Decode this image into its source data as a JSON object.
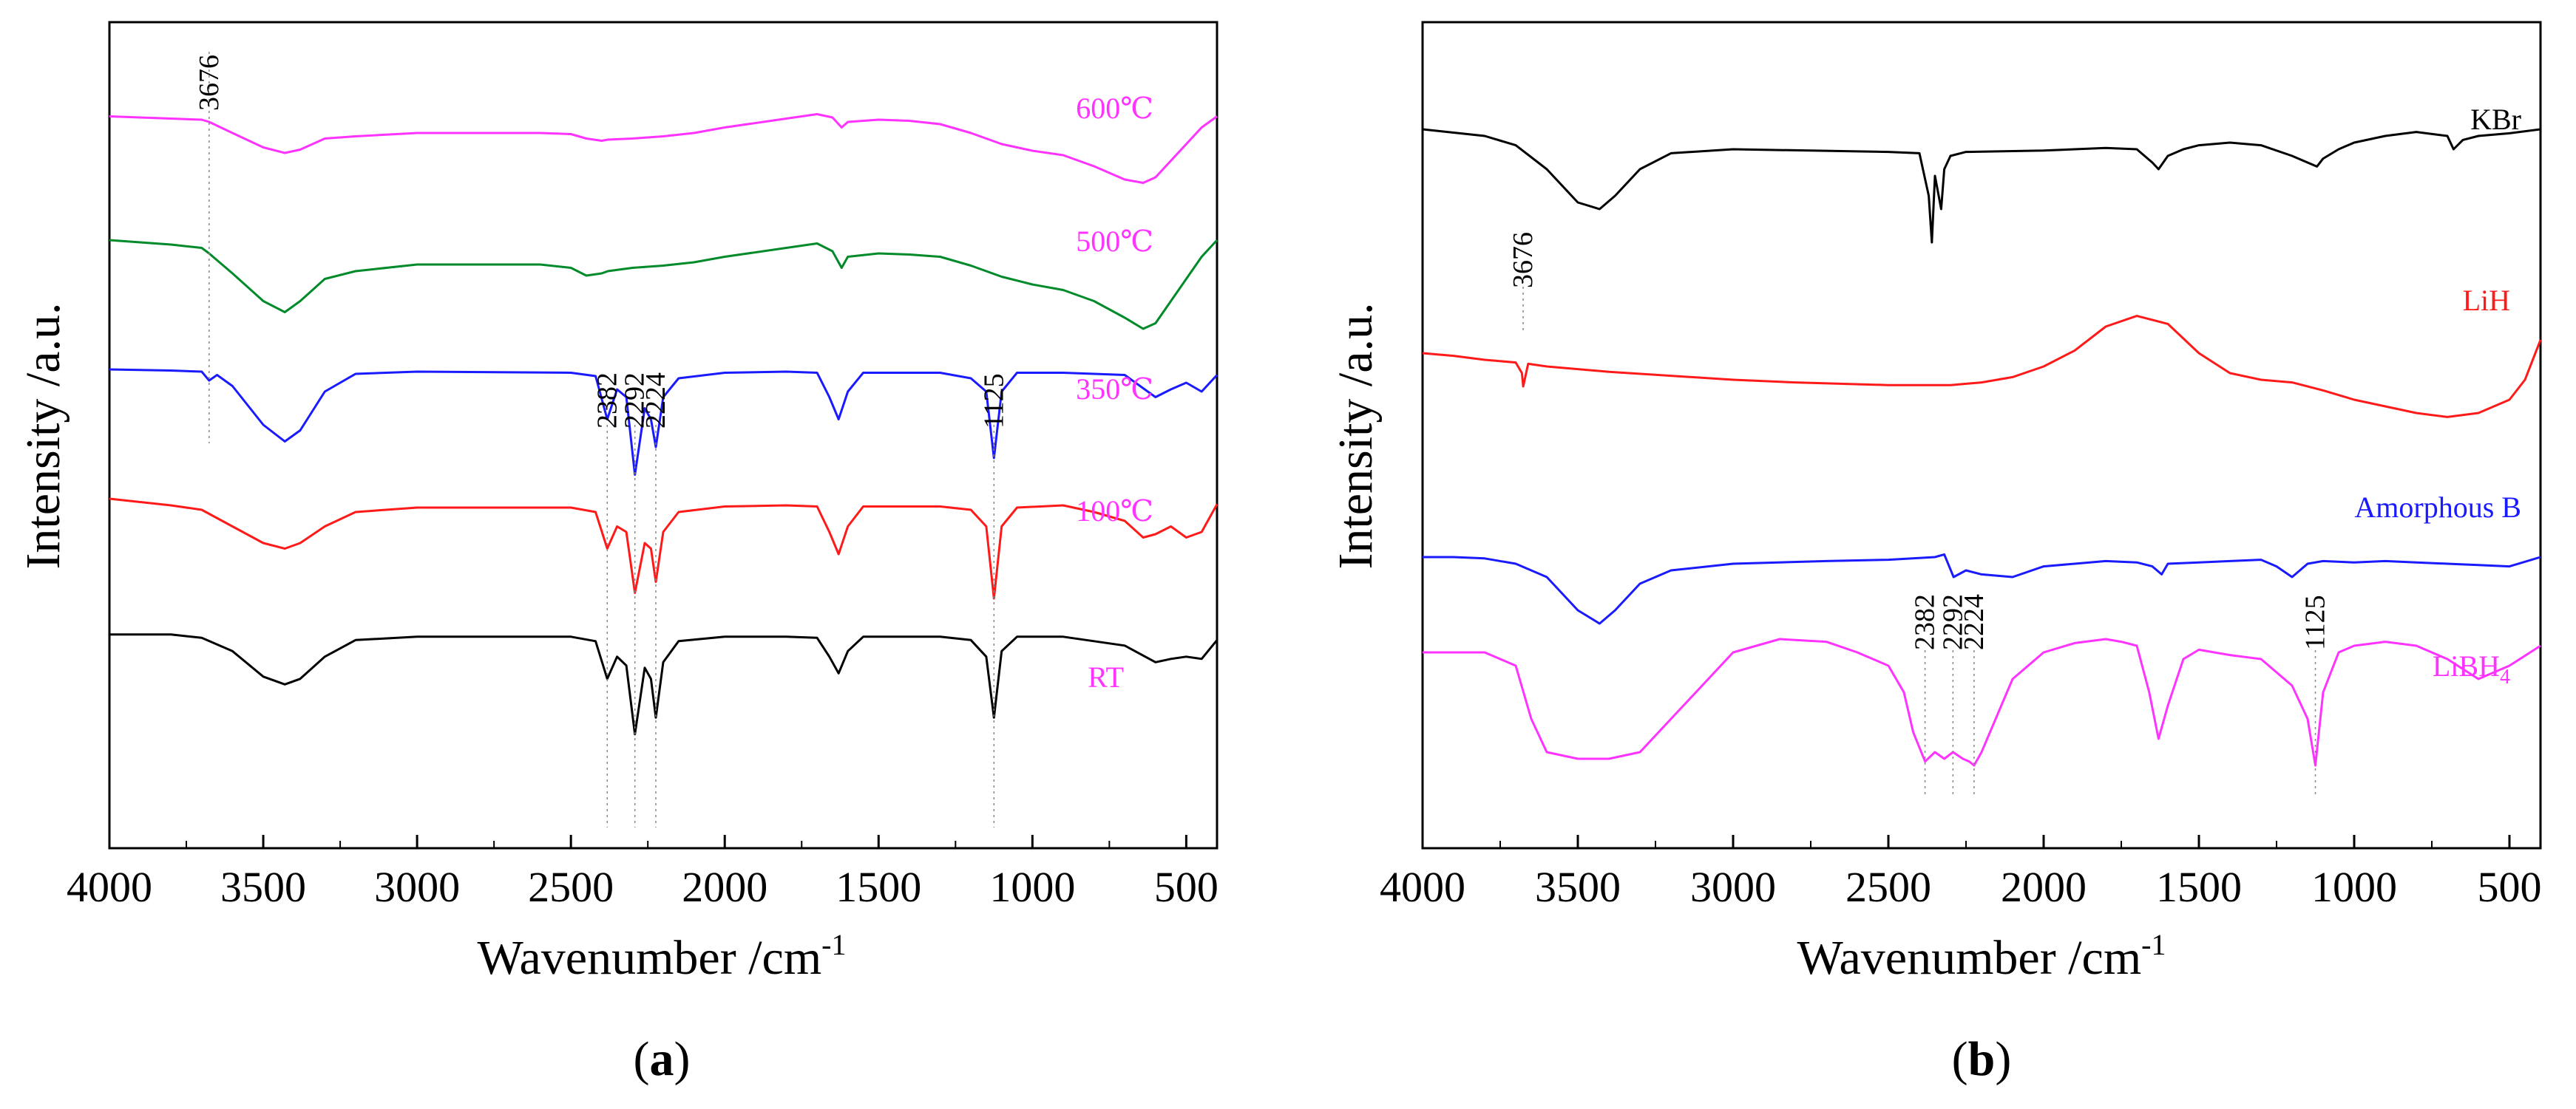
{
  "chart_data": [
    {
      "type": "line",
      "panel_label": "a",
      "xlabel": "Wavenumber /cm",
      "xlabel_sup": "-1",
      "ylabel": "Intensity /a.u.",
      "xlim": [
        4000,
        400
      ],
      "xticks": [
        4000,
        3500,
        3000,
        2500,
        2000,
        1500,
        1000,
        500
      ],
      "peak_markers": [
        {
          "label": "3676",
          "x": 3676
        },
        {
          "label": "2382",
          "x": 2382
        },
        {
          "label": "2292",
          "x": 2292
        },
        {
          "label": "2224",
          "x": 2224
        },
        {
          "label": "1125",
          "x": 1125
        }
      ],
      "series": [
        {
          "name": "600℃",
          "color": "#ff33ff",
          "offset": 0.0,
          "x": [
            4000,
            3900,
            3800,
            3700,
            3676,
            3600,
            3500,
            3430,
            3380,
            3300,
            3200,
            3000,
            2600,
            2500,
            2450,
            2400,
            2380,
            2300,
            2250,
            2200,
            2100,
            2000,
            1800,
            1700,
            1650,
            1620,
            1600,
            1500,
            1400,
            1300,
            1200,
            1100,
            1000,
            900,
            800,
            700,
            640,
            600,
            550,
            500,
            450,
            400
          ],
          "y": [
            0.05,
            0.06,
            0.07,
            0.08,
            0.1,
            0.2,
            0.33,
            0.38,
            0.35,
            0.25,
            0.23,
            0.2,
            0.2,
            0.21,
            0.25,
            0.27,
            0.26,
            0.25,
            0.24,
            0.23,
            0.2,
            0.15,
            0.07,
            0.03,
            0.06,
            0.15,
            0.1,
            0.08,
            0.09,
            0.12,
            0.2,
            0.3,
            0.36,
            0.4,
            0.5,
            0.62,
            0.65,
            0.6,
            0.45,
            0.3,
            0.15,
            0.05
          ]
        },
        {
          "name": "500℃",
          "color": "#008a2a",
          "offset": 1.0,
          "x": [
            4000,
            3900,
            3800,
            3700,
            3676,
            3600,
            3500,
            3430,
            3380,
            3300,
            3200,
            3000,
            2600,
            2500,
            2450,
            2400,
            2380,
            2300,
            2250,
            2200,
            2100,
            2000,
            1800,
            1700,
            1650,
            1620,
            1600,
            1500,
            1400,
            1300,
            1200,
            1100,
            1000,
            900,
            800,
            700,
            640,
            600,
            550,
            500,
            450,
            400
          ],
          "y": [
            0.0,
            0.02,
            0.04,
            0.07,
            0.12,
            0.3,
            0.55,
            0.65,
            0.55,
            0.35,
            0.28,
            0.22,
            0.22,
            0.25,
            0.32,
            0.3,
            0.28,
            0.25,
            0.24,
            0.23,
            0.2,
            0.15,
            0.07,
            0.03,
            0.1,
            0.25,
            0.15,
            0.12,
            0.13,
            0.15,
            0.23,
            0.33,
            0.4,
            0.45,
            0.55,
            0.7,
            0.8,
            0.75,
            0.55,
            0.35,
            0.15,
            0.0
          ]
        },
        {
          "name": "350℃",
          "color": "#1a1aff",
          "offset": 2.0,
          "x": [
            4000,
            3800,
            3700,
            3676,
            3650,
            3600,
            3500,
            3430,
            3380,
            3300,
            3200,
            3000,
            2500,
            2420,
            2382,
            2350,
            2320,
            2292,
            2260,
            2240,
            2224,
            2200,
            2150,
            2000,
            1800,
            1700,
            1660,
            1630,
            1600,
            1550,
            1300,
            1200,
            1150,
            1125,
            1100,
            1050,
            900,
            700,
            600,
            550,
            500,
            450,
            400
          ],
          "y": [
            0.0,
            0.01,
            0.02,
            0.1,
            0.05,
            0.15,
            0.5,
            0.65,
            0.55,
            0.2,
            0.04,
            0.02,
            0.03,
            0.06,
            0.45,
            0.18,
            0.25,
            0.95,
            0.35,
            0.45,
            0.7,
            0.25,
            0.08,
            0.03,
            0.02,
            0.03,
            0.25,
            0.45,
            0.2,
            0.03,
            0.03,
            0.08,
            0.2,
            0.8,
            0.2,
            0.03,
            0.03,
            0.05,
            0.25,
            0.18,
            0.12,
            0.2,
            0.05
          ]
        },
        {
          "name": "100℃",
          "color": "#ff1a1a",
          "offset": 3.0,
          "x": [
            4000,
            3900,
            3800,
            3700,
            3600,
            3500,
            3430,
            3380,
            3300,
            3200,
            3000,
            2500,
            2420,
            2382,
            2350,
            2320,
            2292,
            2260,
            2240,
            2224,
            2200,
            2150,
            2000,
            1800,
            1700,
            1660,
            1630,
            1600,
            1550,
            1300,
            1200,
            1150,
            1125,
            1100,
            1050,
            900,
            800,
            700,
            640,
            600,
            550,
            500,
            450,
            400
          ],
          "y": [
            0.0,
            0.03,
            0.06,
            0.1,
            0.25,
            0.4,
            0.45,
            0.4,
            0.25,
            0.12,
            0.08,
            0.08,
            0.12,
            0.45,
            0.25,
            0.3,
            0.85,
            0.4,
            0.45,
            0.75,
            0.3,
            0.12,
            0.07,
            0.06,
            0.07,
            0.3,
            0.5,
            0.25,
            0.07,
            0.07,
            0.1,
            0.25,
            0.9,
            0.25,
            0.08,
            0.06,
            0.12,
            0.2,
            0.35,
            0.32,
            0.25,
            0.35,
            0.3,
            0.05
          ]
        },
        {
          "name": "RT",
          "color": "#000000",
          "offset": 4.05,
          "x": [
            4000,
            3800,
            3700,
            3600,
            3500,
            3430,
            3380,
            3300,
            3200,
            3000,
            2500,
            2420,
            2382,
            2350,
            2320,
            2292,
            2260,
            2240,
            2224,
            2200,
            2150,
            2000,
            1800,
            1700,
            1660,
            1630,
            1600,
            1550,
            1300,
            1200,
            1150,
            1125,
            1100,
            1050,
            900,
            700,
            600,
            550,
            500,
            450,
            400
          ],
          "y": [
            0.0,
            0.0,
            0.03,
            0.15,
            0.38,
            0.45,
            0.4,
            0.2,
            0.05,
            0.02,
            0.02,
            0.06,
            0.4,
            0.2,
            0.28,
            0.9,
            0.3,
            0.4,
            0.75,
            0.25,
            0.06,
            0.02,
            0.02,
            0.03,
            0.2,
            0.35,
            0.15,
            0.02,
            0.02,
            0.05,
            0.2,
            0.75,
            0.15,
            0.02,
            0.02,
            0.1,
            0.25,
            0.22,
            0.2,
            0.22,
            0.05
          ]
        }
      ]
    },
    {
      "type": "line",
      "panel_label": "b",
      "xlabel": "Wavenumber /cm",
      "xlabel_sup": "-1",
      "ylabel": "Intensity /a.u.",
      "xlim": [
        4000,
        400
      ],
      "xticks": [
        4000,
        3500,
        3000,
        2500,
        2000,
        1500,
        1000,
        500
      ],
      "peak_markers": [
        {
          "label": "3676",
          "x": 3676
        },
        {
          "label": "2382",
          "x": 2382
        },
        {
          "label": "2292",
          "x": 2292
        },
        {
          "label": "2224",
          "x": 2224
        },
        {
          "label": "1125",
          "x": 1125
        }
      ],
      "series": [
        {
          "name": "KBr",
          "color": "#000000",
          "offset": 0.0,
          "x": [
            4000,
            3800,
            3700,
            3600,
            3500,
            3430,
            3380,
            3300,
            3200,
            3000,
            2500,
            2400,
            2370,
            2360,
            2350,
            2330,
            2320,
            2300,
            2250,
            2000,
            1800,
            1700,
            1650,
            1630,
            1600,
            1550,
            1500,
            1400,
            1300,
            1200,
            1150,
            1120,
            1100,
            1050,
            1000,
            900,
            800,
            700,
            680,
            650,
            600,
            500,
            400
          ],
          "y": [
            0.0,
            0.05,
            0.12,
            0.3,
            0.55,
            0.6,
            0.5,
            0.3,
            0.18,
            0.15,
            0.17,
            0.18,
            0.5,
            0.85,
            0.35,
            0.6,
            0.3,
            0.2,
            0.17,
            0.16,
            0.14,
            0.15,
            0.25,
            0.3,
            0.2,
            0.15,
            0.12,
            0.1,
            0.12,
            0.2,
            0.25,
            0.28,
            0.22,
            0.15,
            0.1,
            0.05,
            0.02,
            0.05,
            0.15,
            0.08,
            0.05,
            0.03,
            0.0
          ]
        },
        {
          "name": "LiH",
          "color": "#ff1a1a",
          "offset": 0.95,
          "x": [
            4000,
            3900,
            3800,
            3700,
            3680,
            3676,
            3660,
            3600,
            3500,
            3400,
            3000,
            2800,
            2500,
            2300,
            2200,
            2100,
            2000,
            1900,
            1800,
            1700,
            1600,
            1500,
            1400,
            1300,
            1200,
            1100,
            1000,
            900,
            800,
            700,
            600,
            500,
            450,
            400
          ],
          "y": [
            0.1,
            0.12,
            0.15,
            0.17,
            0.25,
            0.35,
            0.18,
            0.2,
            0.22,
            0.24,
            0.3,
            0.32,
            0.34,
            0.34,
            0.32,
            0.28,
            0.2,
            0.08,
            -0.1,
            -0.18,
            -0.12,
            0.1,
            0.25,
            0.3,
            0.32,
            0.38,
            0.45,
            0.5,
            0.55,
            0.58,
            0.55,
            0.45,
            0.3,
            0.0
          ]
        },
        {
          "name": "Amorphous B",
          "color": "#1a1aff",
          "offset": 1.9,
          "x": [
            4000,
            3900,
            3800,
            3700,
            3600,
            3500,
            3430,
            3380,
            3300,
            3200,
            3000,
            2700,
            2500,
            2350,
            2320,
            2290,
            2250,
            2200,
            2100,
            2000,
            1900,
            1800,
            1700,
            1650,
            1620,
            1600,
            1500,
            1400,
            1300,
            1250,
            1200,
            1150,
            1100,
            1000,
            900,
            800,
            700,
            600,
            500,
            400
          ],
          "y": [
            0.05,
            0.05,
            0.06,
            0.1,
            0.2,
            0.45,
            0.55,
            0.45,
            0.25,
            0.15,
            0.1,
            0.08,
            0.07,
            0.05,
            0.03,
            0.2,
            0.15,
            0.18,
            0.2,
            0.12,
            0.1,
            0.08,
            0.09,
            0.12,
            0.18,
            0.1,
            0.09,
            0.08,
            0.07,
            0.12,
            0.2,
            0.1,
            0.08,
            0.09,
            0.08,
            0.09,
            0.1,
            0.11,
            0.12,
            0.05
          ]
        },
        {
          "name": "LiBH4",
          "color": "#ff33ff",
          "offset": 2.3,
          "x": [
            4000,
            3800,
            3700,
            3650,
            3600,
            3500,
            3400,
            3300,
            3200,
            3000,
            2850,
            2700,
            2600,
            2500,
            2450,
            2420,
            2382,
            2350,
            2320,
            2292,
            2260,
            2240,
            2224,
            2200,
            2100,
            2000,
            1900,
            1800,
            1750,
            1700,
            1660,
            1630,
            1600,
            1550,
            1500,
            1450,
            1400,
            1300,
            1250,
            1200,
            1150,
            1125,
            1100,
            1050,
            1000,
            900,
            800,
            700,
            600,
            500,
            400
          ],
          "y": [
            0.1,
            0.1,
            0.2,
            0.6,
            0.85,
            0.9,
            0.9,
            0.85,
            0.6,
            0.1,
            0.0,
            0.02,
            0.1,
            0.2,
            0.4,
            0.7,
            0.92,
            0.85,
            0.9,
            0.85,
            0.9,
            0.92,
            0.95,
            0.85,
            0.3,
            0.1,
            0.03,
            0.0,
            0.02,
            0.05,
            0.4,
            0.75,
            0.5,
            0.15,
            0.08,
            0.1,
            0.12,
            0.15,
            0.25,
            0.35,
            0.6,
            0.95,
            0.4,
            0.1,
            0.05,
            0.02,
            0.05,
            0.15,
            0.3,
            0.2,
            0.05
          ]
        }
      ]
    }
  ]
}
